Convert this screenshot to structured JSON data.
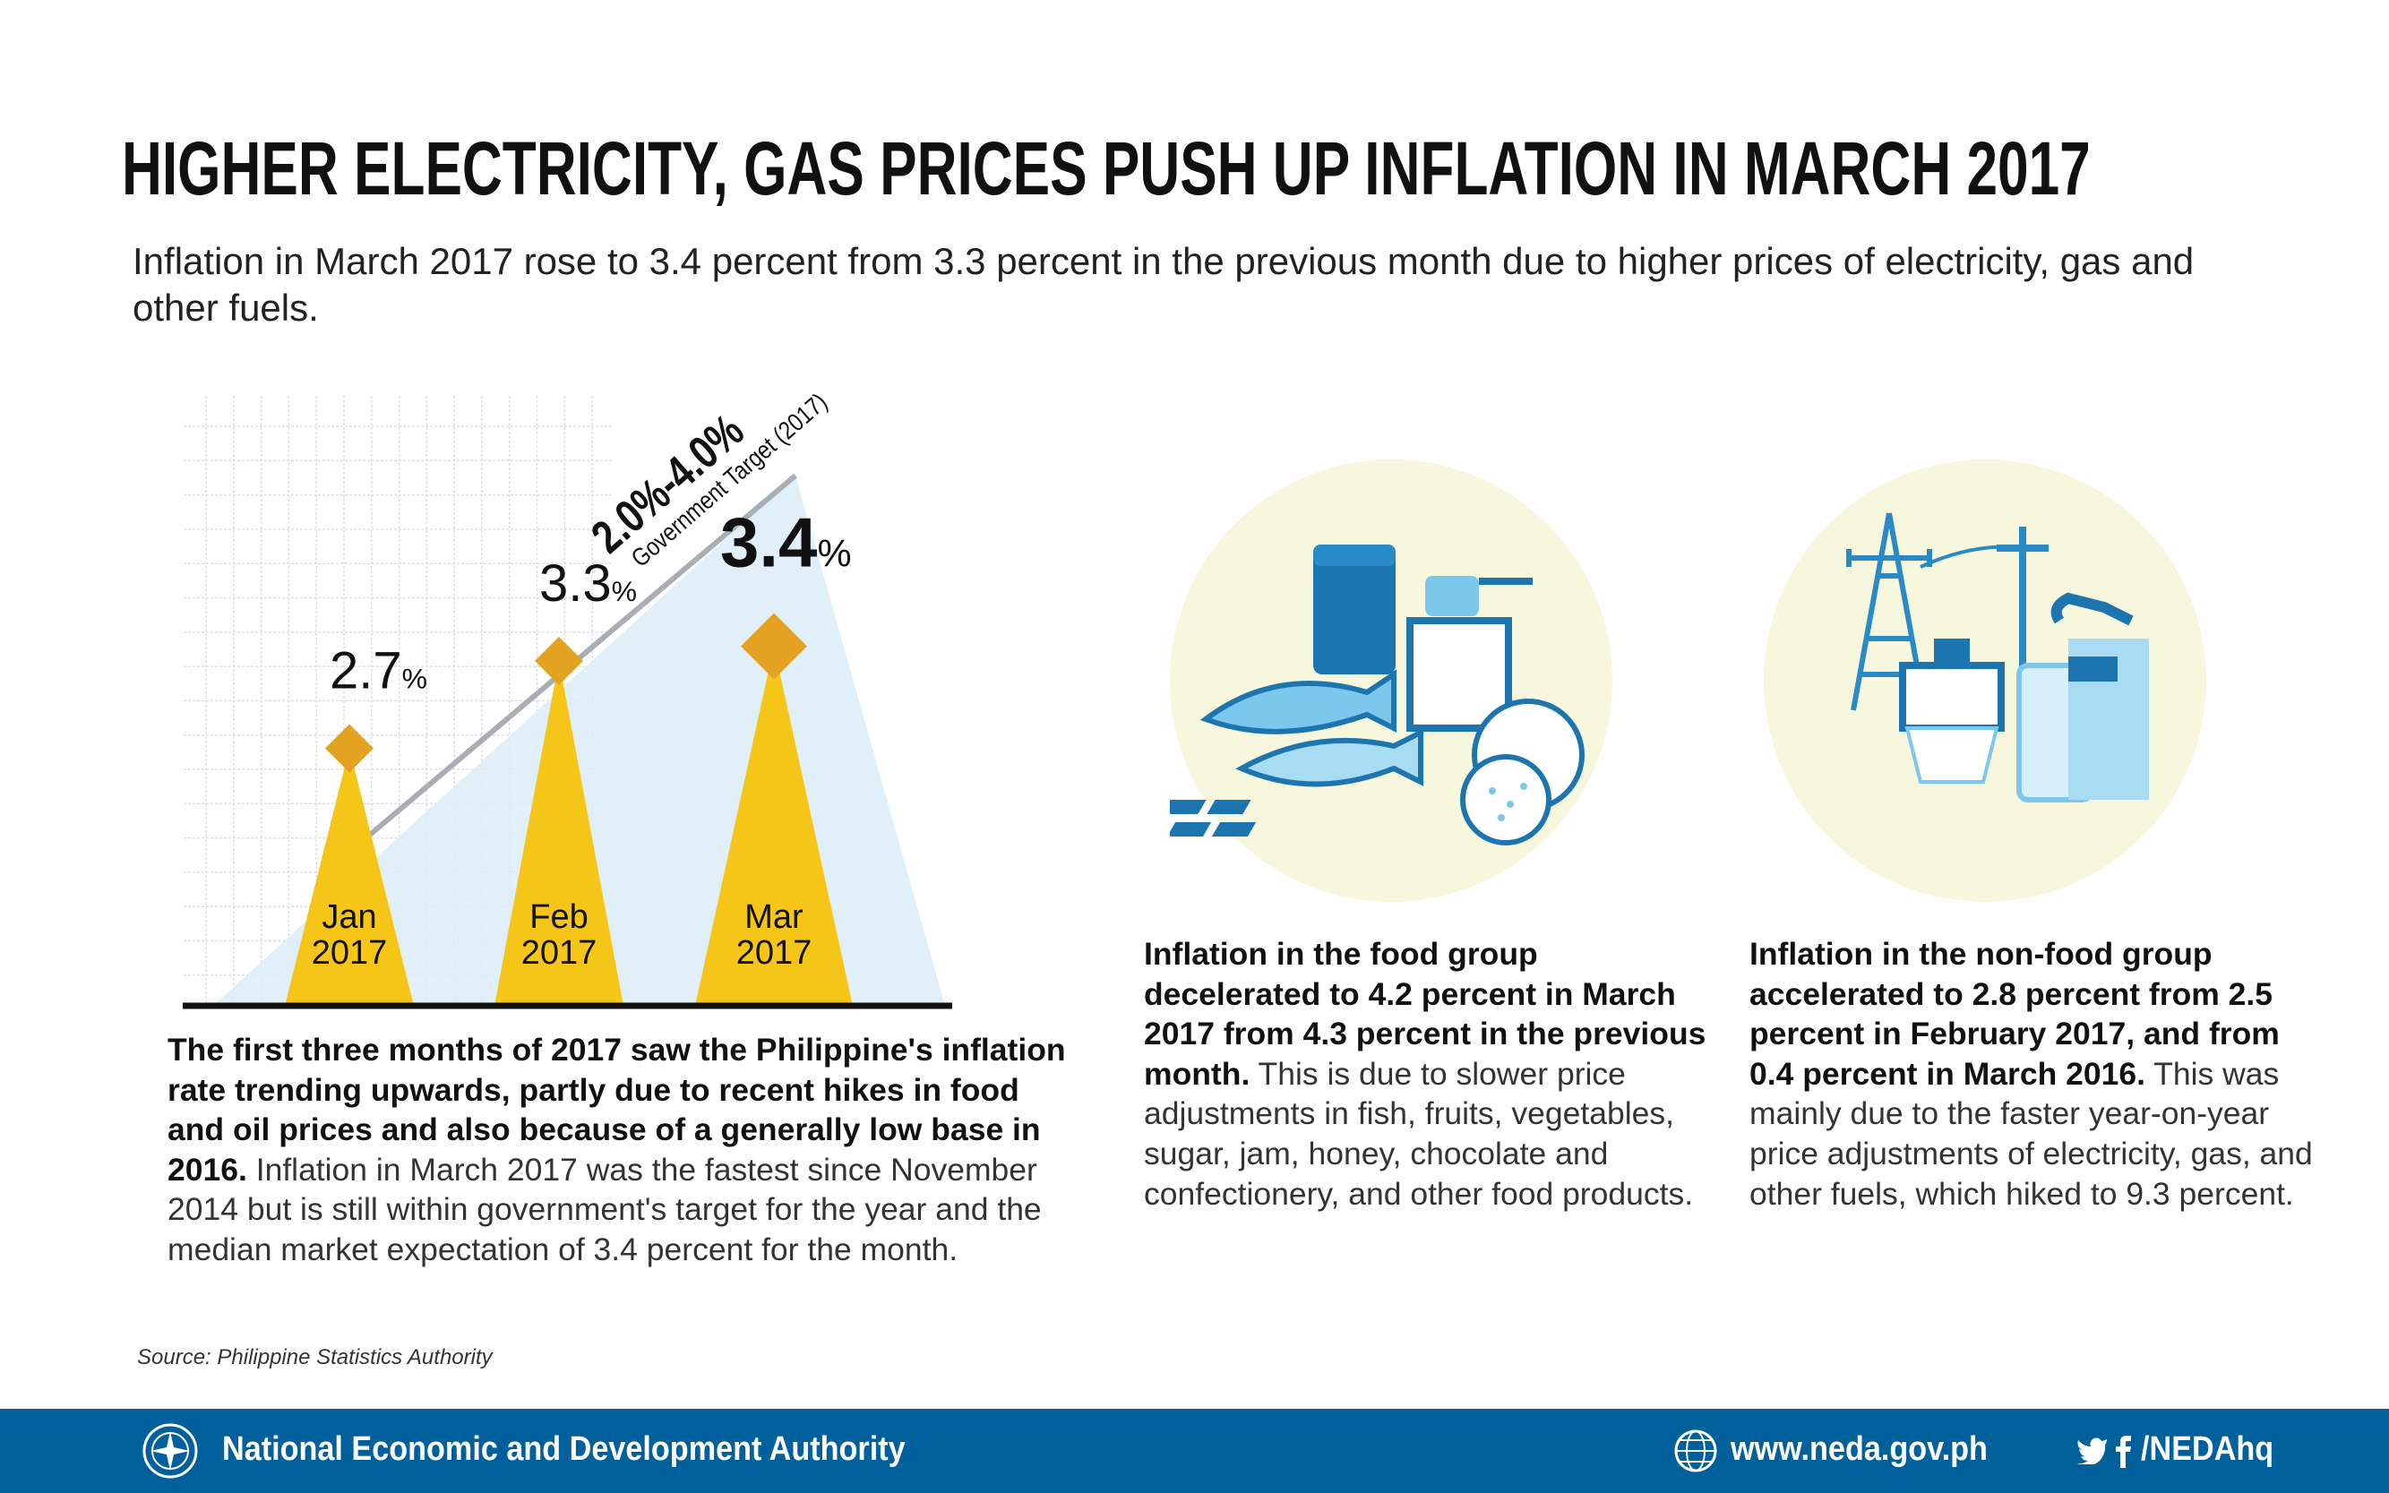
{
  "title": "HIGHER ELECTRICITY, GAS PRICES PUSH UP INFLATION IN MARCH 2017",
  "subtitle": "Inflation in March 2017 rose to 3.4 percent from 3.3 percent in the previous month due to higher prices of electricity, gas and other fuels.",
  "chart_data": {
    "type": "bar",
    "categories": [
      "Jan 2017",
      "Feb 2017",
      "Mar 2017"
    ],
    "category_lines": [
      [
        "Jan",
        "2017"
      ],
      [
        "Feb",
        "2017"
      ],
      [
        "Mar",
        "2017"
      ]
    ],
    "values": [
      2.7,
      3.3,
      3.4
    ],
    "value_labels": [
      "2.7",
      "3.3",
      "3.4"
    ],
    "unit": "%",
    "target_range": "2.0%-4.0%",
    "target_label": "Government Target (2017)",
    "grid": true,
    "colors": {
      "bar": "#f5c518",
      "marker": "#e3a21f",
      "target_area": "#dcedf7",
      "target_line": "#a8aeb3"
    }
  },
  "left_para": {
    "bold": "The first three months of 2017 saw the Philippine's inflation rate trending upwards, partly due to recent hikes in food and oil prices and also because of a generally low base in 2016.",
    "normal": " Inflation in March 2017 was the fastest since November 2014 but is still within government's target for the year and the median market expectation of 3.4 percent for the month."
  },
  "food": {
    "icon": "food-group-icon",
    "bold": "Inflation in the food group decelerated to 4.2 percent in March 2017 from 4.3 percent in the previous month.",
    "normal": " This is due to slower price adjustments in fish, fruits, vegetables, sugar, jam, honey, chocolate and confectionery, and other food products."
  },
  "nonfood": {
    "icon": "utilities-fuel-icon",
    "bold": "Inflation in the non-food group accelerated to 2.8 percent from 2.5 percent in February 2017, and from 0.4 percent in March 2016.",
    "normal": " This was mainly due to the faster year-on-year price adjustments of electricity, gas, and other fuels, which hiked to 9.3 percent."
  },
  "source": "Source: Philippine Statistics Authority",
  "footer": {
    "org": "National Economic and Development Authority",
    "website": "www.neda.gov.ph",
    "social": "/NEDAhq",
    "color": "#00609c"
  }
}
